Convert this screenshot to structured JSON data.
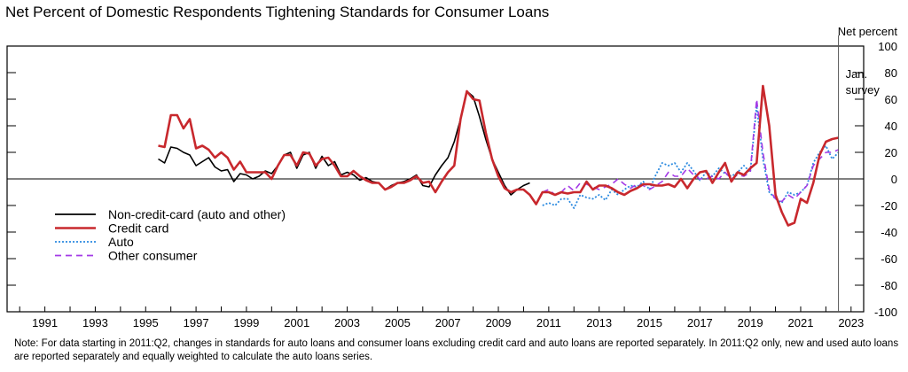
{
  "title": "Net Percent of Domestic Respondents Tightening Standards for Consumer Loans",
  "note": "Note: For data starting in 2011:Q2, changes in standards for auto loans and consumer loans excluding credit card and auto loans are reported separately. In 2011:Q2 only, new and used auto loans are reported separately and equally weighted to calculate the auto loans series.",
  "chart_data": {
    "type": "line",
    "title": "Net Percent of Domestic Respondents Tightening Standards for Consumer Loans",
    "ylabel": "Net percent",
    "ylim": [
      -100,
      100
    ],
    "yticks": [
      -100,
      -80,
      -60,
      -40,
      -20,
      0,
      20,
      40,
      60,
      80,
      100
    ],
    "ytick_labels": [
      "-100",
      "-80",
      "-60",
      "-40",
      "-20",
      "0",
      "20",
      "40",
      "60",
      "80",
      "100"
    ],
    "xlim": [
      1990,
      2024
    ],
    "xtick_labels": [
      "1991",
      "1993",
      "1995",
      "1997",
      "1999",
      "2001",
      "2003",
      "2005",
      "2007",
      "2009",
      "2011",
      "2013",
      "2015",
      "2017",
      "2019",
      "2021",
      "2023"
    ],
    "grid": false,
    "legend": "lower-left",
    "annotation": {
      "x": 2023.0,
      "text": [
        "Jan.",
        "survey"
      ]
    },
    "series": [
      {
        "name": "Non-credit-card (auto and other)",
        "color": "#000000",
        "style": "solid",
        "x": [
          1996.0,
          1996.25,
          1996.5,
          1996.75,
          1997.0,
          1997.25,
          1997.5,
          1997.75,
          1998.0,
          1998.25,
          1998.5,
          1998.75,
          1999.0,
          1999.25,
          1999.5,
          1999.75,
          2000.0,
          2000.25,
          2000.5,
          2000.75,
          2001.0,
          2001.25,
          2001.5,
          2001.75,
          2002.0,
          2002.25,
          2002.5,
          2002.75,
          2003.0,
          2003.25,
          2003.5,
          2003.75,
          2004.0,
          2004.25,
          2004.5,
          2004.75,
          2005.0,
          2005.25,
          2005.5,
          2005.75,
          2006.0,
          2006.25,
          2006.5,
          2006.75,
          2007.0,
          2007.25,
          2007.5,
          2007.75,
          2008.0,
          2008.25,
          2008.5,
          2008.75,
          2009.0,
          2009.25,
          2009.5,
          2009.75,
          2010.0,
          2010.25,
          2010.5,
          2010.75
        ],
        "values": [
          15,
          12,
          24,
          23,
          20,
          18,
          10,
          13,
          16,
          9,
          6,
          7,
          -2,
          4,
          3,
          0,
          2,
          6,
          4,
          10,
          18,
          20,
          8,
          18,
          20,
          8,
          17,
          10,
          13,
          3,
          5,
          3,
          -1,
          1,
          -2,
          -3,
          -8,
          -5,
          -3,
          -2,
          0,
          3,
          -5,
          -6,
          3,
          10,
          16,
          28,
          45,
          66,
          62,
          47,
          30,
          15,
          5,
          -5,
          -12,
          -8,
          -5,
          -3
        ]
      },
      {
        "name": "Credit card",
        "color": "#c8282d",
        "style": "solid",
        "x": [
          1996.0,
          1996.25,
          1996.5,
          1996.75,
          1997.0,
          1997.25,
          1997.5,
          1997.75,
          1998.0,
          1998.25,
          1998.5,
          1998.75,
          1999.0,
          1999.25,
          1999.5,
          1999.75,
          2000.0,
          2000.25,
          2000.5,
          2000.75,
          2001.0,
          2001.25,
          2001.5,
          2001.75,
          2002.0,
          2002.25,
          2002.5,
          2002.75,
          2003.0,
          2003.25,
          2003.5,
          2003.75,
          2004.0,
          2004.25,
          2004.5,
          2004.75,
          2005.0,
          2005.25,
          2005.5,
          2005.75,
          2006.0,
          2006.25,
          2006.5,
          2006.75,
          2007.0,
          2007.25,
          2007.5,
          2007.75,
          2008.0,
          2008.25,
          2008.5,
          2008.75,
          2009.0,
          2009.25,
          2009.5,
          2009.75,
          2010.0,
          2010.25,
          2010.5,
          2010.75,
          2011.0,
          2011.25,
          2011.5,
          2011.75,
          2012.0,
          2012.25,
          2012.5,
          2012.75,
          2013.0,
          2013.25,
          2013.5,
          2013.75,
          2014.0,
          2014.25,
          2014.5,
          2014.75,
          2015.0,
          2015.25,
          2015.5,
          2015.75,
          2016.0,
          2016.25,
          2016.5,
          2016.75,
          2017.0,
          2017.25,
          2017.5,
          2017.75,
          2018.0,
          2018.25,
          2018.5,
          2018.75,
          2019.0,
          2019.25,
          2019.5,
          2019.75,
          2020.0,
          2020.25,
          2020.5,
          2020.75,
          2021.0,
          2021.25,
          2021.5,
          2021.75,
          2022.0,
          2022.25,
          2022.5,
          2022.75,
          2023.0
        ],
        "values": [
          25,
          24,
          48,
          48,
          38,
          45,
          23,
          25,
          22,
          16,
          20,
          16,
          7,
          13,
          5,
          5,
          5,
          5,
          0,
          10,
          18,
          18,
          10,
          20,
          19,
          10,
          15,
          16,
          10,
          2,
          2,
          6,
          2,
          -1,
          -3,
          -3,
          -8,
          -6,
          -3,
          -3,
          -1,
          2,
          -3,
          -2,
          -10,
          -2,
          5,
          10,
          45,
          66,
          60,
          59,
          35,
          15,
          2,
          -7,
          -10,
          -8,
          -8,
          -12,
          -19,
          -10,
          -10,
          -12,
          -10,
          -11,
          -10,
          -10,
          -2,
          -8,
          -5,
          -5,
          -7,
          -10,
          -12,
          -9,
          -7,
          -4,
          -4,
          -5,
          -5,
          -4,
          -6,
          0,
          -7,
          0,
          5,
          6,
          -3,
          5,
          12,
          -2,
          5,
          3,
          8,
          12,
          70,
          40,
          -12,
          -25,
          -35,
          -33,
          -15,
          -18,
          -3,
          18,
          28,
          30,
          31
        ]
      },
      {
        "name": "Auto",
        "color": "#2b8ae0",
        "style": "dotted",
        "x": [
          2011.25,
          2011.5,
          2011.75,
          2012.0,
          2012.25,
          2012.5,
          2012.75,
          2013.0,
          2013.25,
          2013.5,
          2013.75,
          2014.0,
          2014.25,
          2014.5,
          2014.75,
          2015.0,
          2015.25,
          2015.5,
          2015.75,
          2016.0,
          2016.25,
          2016.5,
          2016.75,
          2017.0,
          2017.25,
          2017.5,
          2017.75,
          2018.0,
          2018.25,
          2018.5,
          2018.75,
          2019.0,
          2019.25,
          2019.5,
          2019.75,
          2020.0,
          2020.25,
          2020.5,
          2020.75,
          2021.0,
          2021.25,
          2021.5,
          2021.75,
          2022.0,
          2022.25,
          2022.5,
          2022.75,
          2023.0
        ],
        "values": [
          -20,
          -18,
          -20,
          -15,
          -15,
          -22,
          -12,
          -14,
          -15,
          -12,
          -16,
          -8,
          -12,
          -8,
          -5,
          -6,
          -2,
          -8,
          3,
          12,
          10,
          12,
          5,
          12,
          6,
          -1,
          5,
          2,
          8,
          4,
          2,
          5,
          10,
          5,
          55,
          15,
          -10,
          -15,
          -18,
          -10,
          -12,
          -10,
          -5,
          12,
          20,
          25,
          15,
          20
        ]
      },
      {
        "name": "Other consumer",
        "color": "#a43ae6",
        "style": "dashed",
        "x": [
          2011.25,
          2011.5,
          2011.75,
          2012.0,
          2012.25,
          2012.5,
          2012.75,
          2013.0,
          2013.25,
          2013.5,
          2013.75,
          2014.0,
          2014.25,
          2014.5,
          2014.75,
          2015.0,
          2015.25,
          2015.5,
          2015.75,
          2016.0,
          2016.25,
          2016.5,
          2016.75,
          2017.0,
          2017.25,
          2017.5,
          2017.75,
          2018.0,
          2018.25,
          2018.5,
          2018.75,
          2019.0,
          2019.25,
          2019.5,
          2019.75,
          2020.0,
          2020.25,
          2020.5,
          2020.75,
          2021.0,
          2021.25,
          2021.5,
          2021.75,
          2022.0,
          2022.25,
          2022.5,
          2022.75,
          2023.0
        ],
        "values": [
          -10,
          -8,
          -12,
          -10,
          -5,
          -9,
          -3,
          -4,
          -6,
          -8,
          -6,
          -4,
          0,
          -4,
          -7,
          -4,
          -5,
          -8,
          -5,
          -2,
          5,
          2,
          2,
          8,
          3,
          0,
          0,
          2,
          0,
          5,
          0,
          3,
          2,
          5,
          60,
          20,
          -8,
          -15,
          -17,
          -12,
          -15,
          -10,
          -5,
          10,
          15,
          20,
          20,
          22
        ]
      }
    ]
  }
}
